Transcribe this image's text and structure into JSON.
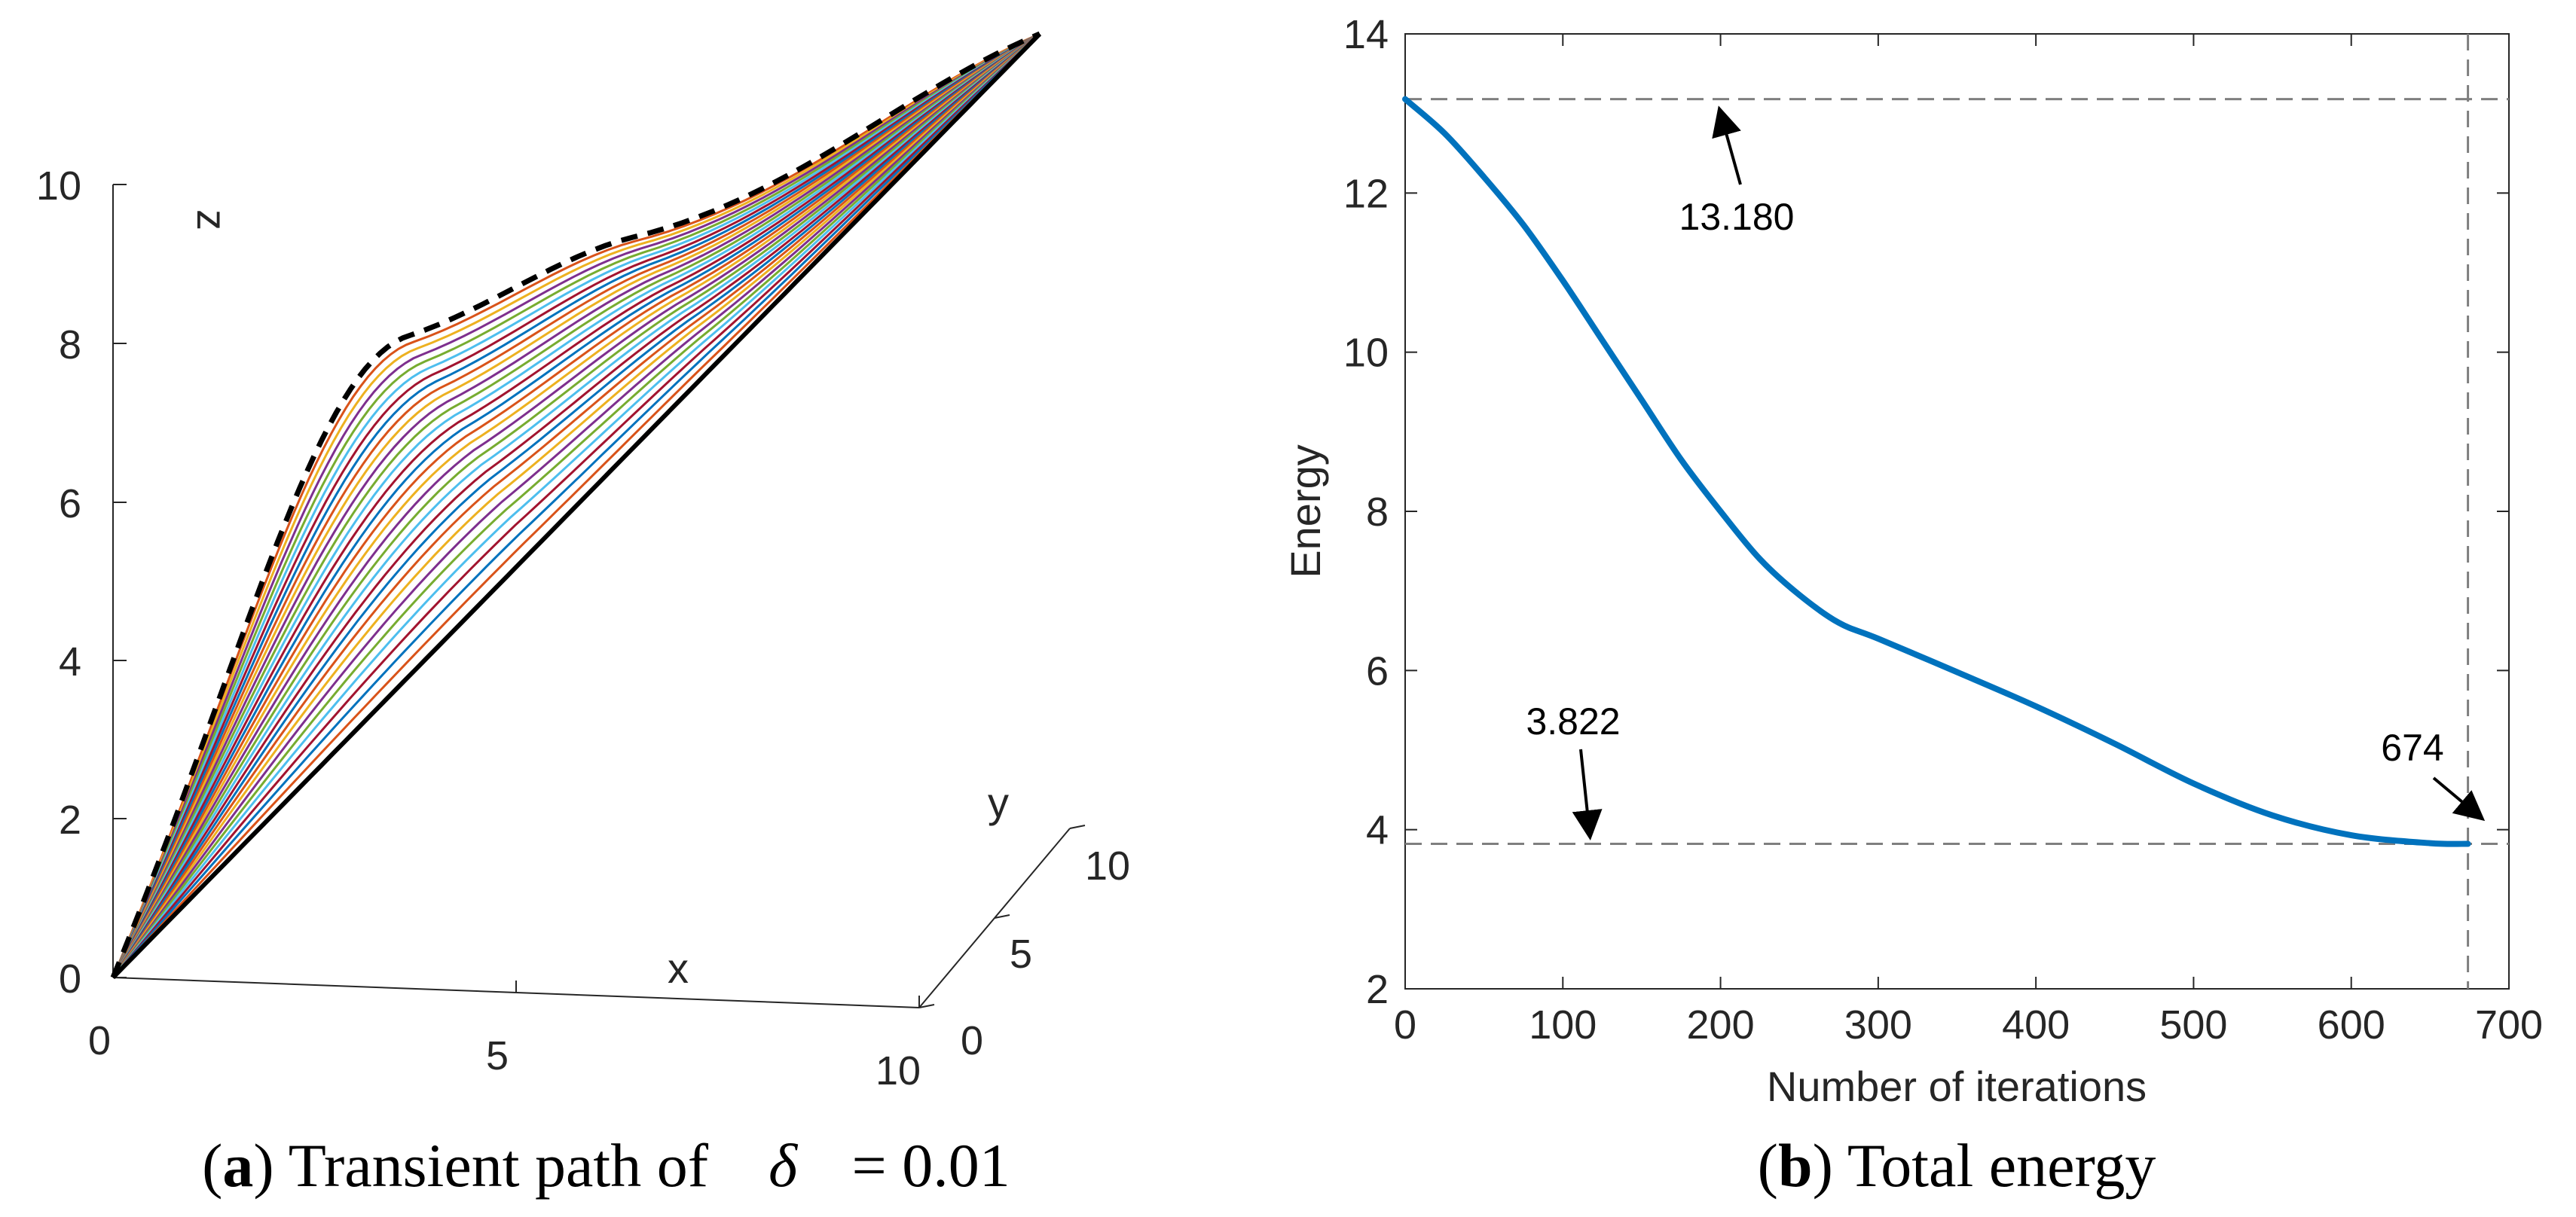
{
  "chart_data": [
    {
      "type": "line3d",
      "panel": "a",
      "caption": {
        "open_paren": "(",
        "letter": "a",
        "text": ") Transient path of ",
        "symbol": "δ",
        "value": " = 0.01"
      },
      "xlabel": "x",
      "ylabel": "y",
      "zlabel": "z",
      "xticks": [
        "0",
        "5",
        "10"
      ],
      "yticks": [
        "0",
        "5",
        "10"
      ],
      "zticks": [
        "0",
        "2",
        "4",
        "6",
        "8",
        "10"
      ],
      "xlim": [
        0,
        10
      ],
      "ylim": [
        0,
        10
      ],
      "zlim": [
        0,
        10
      ],
      "start": [
        0,
        0,
        0
      ],
      "end": [
        10,
        10,
        10
      ],
      "initial_path": {
        "style": "dashed",
        "color": "#000000"
      },
      "final_path": {
        "style": "solid",
        "color": "#000000"
      },
      "num_transient_paths": 30,
      "series_colors": [
        "#0072BD",
        "#D95319",
        "#EDB120",
        "#7E2F8E",
        "#77AC30",
        "#4DBEEE",
        "#A2142F"
      ]
    },
    {
      "type": "line",
      "panel": "b",
      "caption": {
        "open_paren": "(",
        "letter": "b",
        "text": ") Total energy"
      },
      "xlabel": "Number of iterations",
      "ylabel": "Energy",
      "xlim": [
        0,
        700
      ],
      "ylim": [
        2,
        14
      ],
      "xticks": [
        "0",
        "100",
        "200",
        "300",
        "400",
        "500",
        "600",
        "700"
      ],
      "yticks": [
        "2",
        "4",
        "6",
        "8",
        "10",
        "12",
        "14"
      ],
      "series": [
        {
          "name": "Energy",
          "color": "#0072BD",
          "x": [
            0,
            25,
            50,
            75,
            100,
            125,
            150,
            175,
            200,
            225,
            250,
            275,
            300,
            350,
            400,
            450,
            500,
            550,
            600,
            650,
            674
          ],
          "y": [
            13.18,
            12.75,
            12.2,
            11.6,
            10.9,
            10.15,
            9.4,
            8.65,
            8.0,
            7.4,
            6.95,
            6.6,
            6.4,
            5.98,
            5.55,
            5.08,
            4.58,
            4.18,
            3.93,
            3.83,
            3.822
          ]
        }
      ],
      "reference_lines": [
        {
          "orientation": "horizontal",
          "value": 13.18,
          "label": "13.180",
          "style": "dashed"
        },
        {
          "orientation": "horizontal",
          "value": 3.822,
          "label": "3.822",
          "style": "dashed"
        },
        {
          "orientation": "vertical",
          "value": 674,
          "label": "674",
          "style": "dashed"
        }
      ]
    }
  ]
}
